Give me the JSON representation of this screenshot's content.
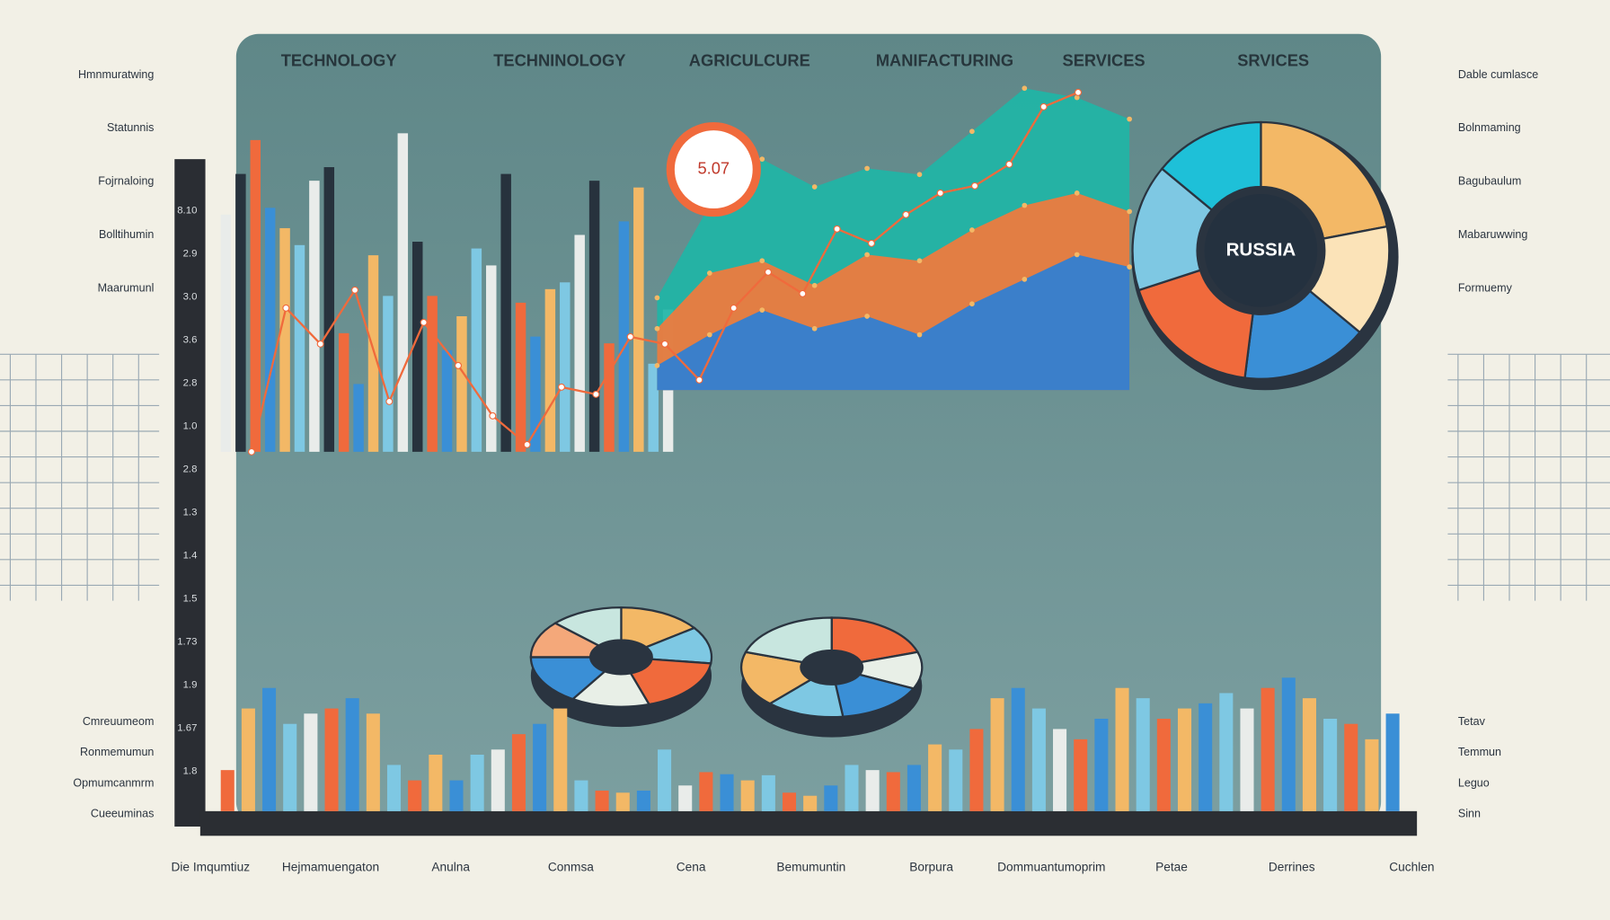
{
  "header": {
    "labels": [
      "TECHNOLOGY",
      "TECHNINOLOGY",
      "AGRICULCURE",
      "MANIFACTURING",
      "SERVICES",
      "SRVICES"
    ]
  },
  "center_label": "RUSSIA",
  "gauge_label": "5.07",
  "y_axis_labels": [
    "8.10",
    "2.9",
    "3.0",
    "3.6",
    "2.8",
    "1.0",
    "2.8",
    "1.3",
    "1.4",
    "1.5",
    "1.73",
    "1.9",
    "1.67",
    "1.8"
  ],
  "left_labels": [
    "Hmnmuratwing",
    "Statunnis",
    "Fojrnaloing",
    "Bolltihumin",
    "Maarumunl",
    "Cmreuumeom",
    "Ronmemumun",
    "Opmumcanmrm",
    "Cueeuminas"
  ],
  "right_labels": [
    "Dable cumlasce",
    "Bolnmaming",
    "Bagubaulum",
    "Mabaruwwing",
    "Formuemy",
    "Tetav",
    "Temmun",
    "Leguo",
    "Sinn"
  ],
  "bottom_labels": [
    "Die Imqumtiuz",
    "Hejmamuengaton",
    "Anulna",
    "Conmsa",
    "Cena",
    "Bemumuntin",
    "Borpura",
    "Dommuantumoprim",
    "Petae",
    "Derrines",
    "Cuchlen"
  ],
  "top_bars": {
    "values": [
      70,
      82,
      92,
      72,
      66,
      61,
      80,
      84,
      35,
      20,
      58,
      46,
      94,
      62,
      46,
      30,
      40,
      60,
      55,
      82,
      44,
      34,
      48,
      50,
      64,
      80,
      32,
      68,
      78,
      26,
      42
    ],
    "colors": [
      "#e9ecea",
      "#27323d",
      "#f06a3c",
      "#3a8fd6",
      "#f3b866",
      "#7ec8e3",
      "#e9ecea",
      "#27323d",
      "#f06a3c",
      "#3a8fd6",
      "#f3b866",
      "#7ec8e3"
    ]
  },
  "line_chart": {
    "color": "#f06a3c",
    "values": [
      0,
      40,
      30,
      45,
      14,
      36,
      24,
      10,
      2,
      18,
      16,
      32,
      30,
      20,
      40,
      50,
      44,
      62,
      58,
      66,
      72,
      74,
      80,
      96,
      100
    ]
  },
  "area_chart": {
    "series": [
      {
        "color": "#1fb5a6",
        "values": [
          30,
          60,
          75,
          66,
          72,
          70,
          84,
          98,
          95,
          88
        ]
      },
      {
        "color": "#f27a3c",
        "values": [
          20,
          38,
          42,
          34,
          44,
          42,
          52,
          60,
          64,
          58
        ]
      },
      {
        "color": "#2c7fd6",
        "values": [
          8,
          18,
          26,
          20,
          24,
          18,
          28,
          36,
          44,
          40
        ]
      }
    ]
  },
  "donut": {
    "values": [
      22,
      14,
      16,
      18,
      16,
      14
    ],
    "colors": [
      "#f3b866",
      "#fbe3b8",
      "#3a8fd6",
      "#f06a3c",
      "#7ec8e3",
      "#1ec0d8"
    ]
  },
  "mid_pies": [
    {
      "values": [
        15,
        12,
        18,
        14,
        16,
        12,
        13
      ],
      "colors": [
        "#f3b866",
        "#7ec8e3",
        "#f06a3c",
        "#e8efe7",
        "#3a8fd6",
        "#f4a87a",
        "#c8e6df"
      ]
    },
    {
      "values": [
        20,
        12,
        16,
        14,
        18,
        20
      ],
      "colors": [
        "#f06a3c",
        "#e8efe7",
        "#3a8fd6",
        "#7ec8e3",
        "#f3b866",
        "#c8e6df"
      ]
    }
  ],
  "bottom_bars": {
    "values": [
      40,
      100,
      120,
      85,
      95,
      100,
      110,
      95,
      45,
      30,
      55,
      30,
      55,
      60,
      75,
      85,
      100,
      30,
      20,
      18,
      20,
      60,
      25,
      38,
      36,
      30,
      35,
      18,
      15,
      25,
      45,
      40,
      38,
      45,
      65,
      60,
      80,
      110,
      120,
      100,
      80,
      70,
      90,
      120,
      110,
      90,
      100,
      105,
      115,
      100,
      120,
      130,
      110,
      90,
      85,
      70,
      95
    ],
    "colors": [
      "#f06a3c",
      "#f3b866",
      "#3a8fd6",
      "#7ec8e3",
      "#e9ecea",
      "#f06a3c",
      "#3a8fd6",
      "#f3b866",
      "#7ec8e3"
    ]
  }
}
